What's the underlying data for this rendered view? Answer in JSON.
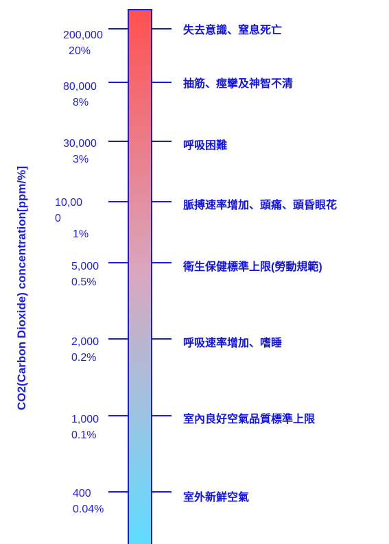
{
  "axis_title": "CO2(Carbon Dioxide) concentration[ppm/%]",
  "colors": {
    "bar_top": "#ff5050",
    "bar_bottom": "#60dcff",
    "line": "#1a1ad8",
    "text": "#1f1fe6"
  },
  "levels": [
    {
      "ppm": "200,000",
      "percent": "20%",
      "effect": "失去意識、窒息死亡"
    },
    {
      "ppm": "80,000",
      "percent": "8%",
      "effect": "抽筋、痙攣及神智不清"
    },
    {
      "ppm": "30,000",
      "percent": "3%",
      "effect": "呼吸困難"
    },
    {
      "ppm": "10,00",
      "ppm_wrap": "0",
      "percent": "1%",
      "effect": "脈搏速率增加、頭痛、頭昏眼花"
    },
    {
      "ppm": "5,000",
      "percent": "0.5%",
      "effect": "衛生保健標準上限(勞動規範)"
    },
    {
      "ppm": "2,000",
      "percent": "0.2%",
      "effect": "呼吸速率增加、嗜睡"
    },
    {
      "ppm": "1,000",
      "percent": "0.1%",
      "effect": "室內良好空氣品質標準上限"
    },
    {
      "ppm": "400",
      "percent": "0.04%",
      "effect": "室外新鮮空氣"
    }
  ]
}
